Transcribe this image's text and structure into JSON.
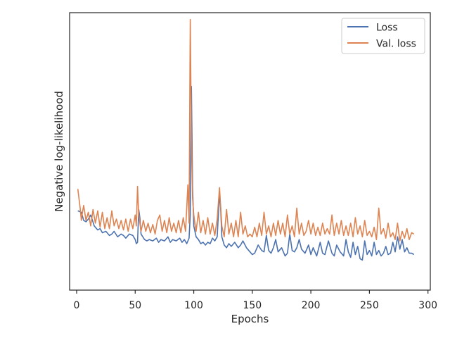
{
  "chart_data": {
    "type": "line",
    "title": "",
    "xlabel": "Epochs",
    "ylabel": "Negative log-likelihood",
    "xlim": [
      -6,
      302
    ],
    "ylim": [
      -0.55,
      9.6
    ],
    "x_ticks": [
      0,
      50,
      100,
      150,
      200,
      250,
      300
    ],
    "x_tick_labels": [
      "0",
      "50",
      "100",
      "150",
      "200",
      "250",
      "300"
    ],
    "y_ticks_visible": false,
    "grid": false,
    "legend_position": "top-right",
    "series": [
      {
        "name": "Loss",
        "color": "#4c72b0",
        "points": [
          [
            1,
            2.35
          ],
          [
            4,
            2.3
          ],
          [
            6,
            2.0
          ],
          [
            8,
            1.95
          ],
          [
            10,
            2.05
          ],
          [
            12,
            2.2
          ],
          [
            15,
            1.8
          ],
          [
            18,
            1.65
          ],
          [
            20,
            1.7
          ],
          [
            22,
            1.55
          ],
          [
            25,
            1.6
          ],
          [
            28,
            1.45
          ],
          [
            30,
            1.5
          ],
          [
            32,
            1.6
          ],
          [
            35,
            1.4
          ],
          [
            38,
            1.5
          ],
          [
            40,
            1.45
          ],
          [
            42,
            1.35
          ],
          [
            45,
            1.5
          ],
          [
            48,
            1.45
          ],
          [
            50,
            1.3
          ],
          [
            51,
            1.15
          ],
          [
            52,
            1.2
          ],
          [
            53,
            2.4
          ],
          [
            54,
            2.1
          ],
          [
            55,
            1.5
          ],
          [
            58,
            1.3
          ],
          [
            60,
            1.25
          ],
          [
            62,
            1.3
          ],
          [
            65,
            1.25
          ],
          [
            68,
            1.35
          ],
          [
            70,
            1.2
          ],
          [
            72,
            1.3
          ],
          [
            75,
            1.25
          ],
          [
            78,
            1.4
          ],
          [
            80,
            1.2
          ],
          [
            82,
            1.3
          ],
          [
            85,
            1.25
          ],
          [
            88,
            1.35
          ],
          [
            90,
            1.2
          ],
          [
            92,
            1.3
          ],
          [
            94,
            1.15
          ],
          [
            96,
            1.35
          ],
          [
            97,
            2.2
          ],
          [
            98,
            6.9
          ],
          [
            99,
            3.2
          ],
          [
            100,
            1.8
          ],
          [
            102,
            1.4
          ],
          [
            104,
            1.3
          ],
          [
            106,
            1.15
          ],
          [
            108,
            1.2
          ],
          [
            110,
            1.1
          ],
          [
            112,
            1.2
          ],
          [
            114,
            1.15
          ],
          [
            116,
            1.35
          ],
          [
            118,
            1.25
          ],
          [
            120,
            1.4
          ],
          [
            122,
            3.0
          ],
          [
            123,
            2.4
          ],
          [
            124,
            1.4
          ],
          [
            126,
            1.1
          ],
          [
            128,
            1.0
          ],
          [
            130,
            1.15
          ],
          [
            132,
            1.05
          ],
          [
            135,
            1.2
          ],
          [
            138,
            1.0
          ],
          [
            140,
            1.1
          ],
          [
            142,
            1.25
          ],
          [
            145,
            1.0
          ],
          [
            148,
            0.85
          ],
          [
            150,
            0.75
          ],
          [
            152,
            0.8
          ],
          [
            155,
            1.1
          ],
          [
            158,
            0.9
          ],
          [
            160,
            0.85
          ],
          [
            162,
            1.45
          ],
          [
            164,
            0.9
          ],
          [
            166,
            0.8
          ],
          [
            168,
            1.0
          ],
          [
            170,
            1.3
          ],
          [
            172,
            0.85
          ],
          [
            175,
            1.0
          ],
          [
            178,
            0.7
          ],
          [
            180,
            0.8
          ],
          [
            182,
            1.5
          ],
          [
            184,
            0.9
          ],
          [
            186,
            0.85
          ],
          [
            188,
            1.0
          ],
          [
            190,
            1.3
          ],
          [
            192,
            0.95
          ],
          [
            195,
            0.8
          ],
          [
            198,
            1.1
          ],
          [
            200,
            0.75
          ],
          [
            202,
            1.0
          ],
          [
            205,
            0.7
          ],
          [
            208,
            1.2
          ],
          [
            210,
            0.8
          ],
          [
            212,
            0.75
          ],
          [
            215,
            1.25
          ],
          [
            218,
            0.8
          ],
          [
            220,
            0.7
          ],
          [
            222,
            1.1
          ],
          [
            225,
            0.85
          ],
          [
            228,
            0.7
          ],
          [
            230,
            1.3
          ],
          [
            232,
            0.85
          ],
          [
            234,
            0.65
          ],
          [
            236,
            1.2
          ],
          [
            238,
            0.75
          ],
          [
            240,
            1.05
          ],
          [
            242,
            0.6
          ],
          [
            244,
            0.55
          ],
          [
            246,
            1.25
          ],
          [
            248,
            0.75
          ],
          [
            250,
            0.9
          ],
          [
            252,
            0.7
          ],
          [
            254,
            1.2
          ],
          [
            256,
            0.75
          ],
          [
            258,
            0.9
          ],
          [
            260,
            0.7
          ],
          [
            262,
            0.8
          ],
          [
            264,
            1.05
          ],
          [
            266,
            0.75
          ],
          [
            268,
            0.8
          ],
          [
            270,
            1.2
          ],
          [
            272,
            0.85
          ],
          [
            274,
            1.4
          ],
          [
            276,
            0.95
          ],
          [
            278,
            1.3
          ],
          [
            280,
            0.85
          ],
          [
            282,
            1.0
          ],
          [
            284,
            0.8
          ],
          [
            286,
            0.8
          ],
          [
            288,
            0.75
          ]
        ]
      },
      {
        "name": "Val. loss",
        "color": "#dd8452",
        "points": [
          [
            1,
            3.15
          ],
          [
            3,
            2.45
          ],
          [
            4,
            2.0
          ],
          [
            5,
            2.3
          ],
          [
            6,
            2.55
          ],
          [
            8,
            2.0
          ],
          [
            10,
            2.3
          ],
          [
            12,
            1.8
          ],
          [
            14,
            2.4
          ],
          [
            16,
            1.9
          ],
          [
            18,
            2.35
          ],
          [
            20,
            1.75
          ],
          [
            22,
            2.3
          ],
          [
            24,
            1.7
          ],
          [
            26,
            2.1
          ],
          [
            28,
            1.7
          ],
          [
            30,
            2.35
          ],
          [
            32,
            1.8
          ],
          [
            34,
            2.05
          ],
          [
            36,
            1.7
          ],
          [
            38,
            2.0
          ],
          [
            40,
            1.65
          ],
          [
            42,
            2.05
          ],
          [
            44,
            1.6
          ],
          [
            46,
            2.05
          ],
          [
            48,
            1.7
          ],
          [
            50,
            2.2
          ],
          [
            51,
            1.8
          ],
          [
            52,
            3.25
          ],
          [
            53,
            2.2
          ],
          [
            55,
            1.6
          ],
          [
            57,
            2.0
          ],
          [
            59,
            1.6
          ],
          [
            61,
            1.9
          ],
          [
            63,
            1.55
          ],
          [
            65,
            1.85
          ],
          [
            67,
            1.5
          ],
          [
            69,
            2.0
          ],
          [
            71,
            2.2
          ],
          [
            73,
            1.6
          ],
          [
            75,
            2.0
          ],
          [
            77,
            1.55
          ],
          [
            79,
            2.1
          ],
          [
            81,
            1.6
          ],
          [
            83,
            1.9
          ],
          [
            85,
            1.55
          ],
          [
            87,
            2.0
          ],
          [
            89,
            1.55
          ],
          [
            91,
            2.1
          ],
          [
            93,
            1.6
          ],
          [
            95,
            3.3
          ],
          [
            96,
            1.9
          ],
          [
            97,
            9.35
          ],
          [
            98,
            5.0
          ],
          [
            99,
            2.8
          ],
          [
            100,
            2.2
          ],
          [
            102,
            1.6
          ],
          [
            104,
            2.3
          ],
          [
            106,
            1.55
          ],
          [
            108,
            2.0
          ],
          [
            110,
            1.5
          ],
          [
            112,
            2.1
          ],
          [
            114,
            1.5
          ],
          [
            116,
            1.9
          ],
          [
            118,
            1.45
          ],
          [
            120,
            2.05
          ],
          [
            122,
            3.2
          ],
          [
            124,
            1.8
          ],
          [
            126,
            1.4
          ],
          [
            128,
            2.4
          ],
          [
            130,
            1.5
          ],
          [
            132,
            1.9
          ],
          [
            134,
            1.4
          ],
          [
            136,
            2.0
          ],
          [
            138,
            1.4
          ],
          [
            140,
            2.3
          ],
          [
            142,
            1.5
          ],
          [
            144,
            1.8
          ],
          [
            146,
            1.4
          ],
          [
            148,
            1.5
          ],
          [
            150,
            1.4
          ],
          [
            152,
            1.75
          ],
          [
            154,
            1.4
          ],
          [
            156,
            1.9
          ],
          [
            158,
            1.45
          ],
          [
            160,
            2.3
          ],
          [
            162,
            1.5
          ],
          [
            164,
            1.8
          ],
          [
            166,
            1.4
          ],
          [
            168,
            1.9
          ],
          [
            170,
            1.45
          ],
          [
            172,
            2.0
          ],
          [
            174,
            1.5
          ],
          [
            176,
            1.9
          ],
          [
            178,
            1.4
          ],
          [
            180,
            2.2
          ],
          [
            182,
            1.5
          ],
          [
            184,
            1.8
          ],
          [
            186,
            1.4
          ],
          [
            188,
            2.45
          ],
          [
            190,
            1.5
          ],
          [
            192,
            1.9
          ],
          [
            194,
            1.45
          ],
          [
            196,
            1.6
          ],
          [
            198,
            2.0
          ],
          [
            200,
            1.5
          ],
          [
            202,
            1.9
          ],
          [
            204,
            1.45
          ],
          [
            206,
            1.75
          ],
          [
            208,
            1.45
          ],
          [
            210,
            1.9
          ],
          [
            212,
            1.5
          ],
          [
            214,
            1.7
          ],
          [
            216,
            1.5
          ],
          [
            218,
            2.2
          ],
          [
            220,
            1.45
          ],
          [
            222,
            1.9
          ],
          [
            224,
            1.5
          ],
          [
            226,
            2.0
          ],
          [
            228,
            1.45
          ],
          [
            230,
            1.8
          ],
          [
            232,
            1.45
          ],
          [
            234,
            1.9
          ],
          [
            236,
            1.4
          ],
          [
            238,
            2.1
          ],
          [
            240,
            1.5
          ],
          [
            242,
            1.8
          ],
          [
            244,
            1.4
          ],
          [
            246,
            2.0
          ],
          [
            248,
            1.45
          ],
          [
            250,
            1.6
          ],
          [
            252,
            1.4
          ],
          [
            254,
            1.75
          ],
          [
            256,
            1.3
          ],
          [
            258,
            2.45
          ],
          [
            260,
            1.5
          ],
          [
            262,
            1.7
          ],
          [
            264,
            1.35
          ],
          [
            266,
            1.9
          ],
          [
            268,
            1.4
          ],
          [
            270,
            1.55
          ],
          [
            272,
            1.3
          ],
          [
            274,
            1.9
          ],
          [
            276,
            1.25
          ],
          [
            278,
            1.6
          ],
          [
            280,
            1.35
          ],
          [
            282,
            1.7
          ],
          [
            284,
            1.3
          ],
          [
            286,
            1.55
          ],
          [
            288,
            1.5
          ]
        ]
      }
    ]
  }
}
